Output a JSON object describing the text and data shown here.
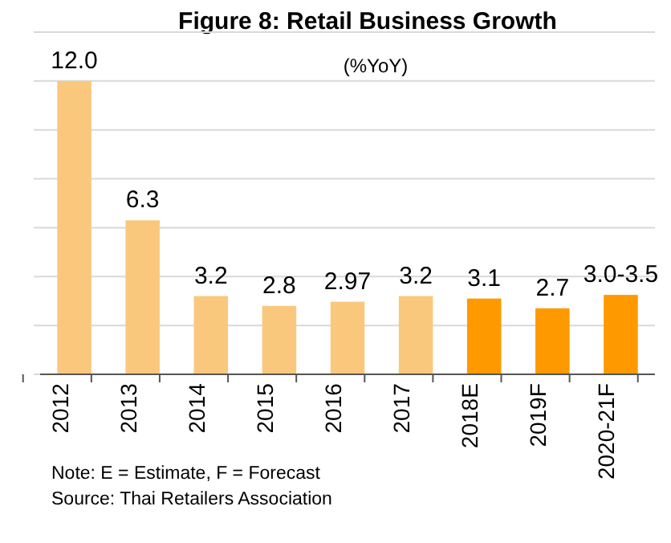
{
  "chart_data": {
    "type": "bar",
    "title": "Figure 8: Retail Business Growth",
    "subtitle": "(%YoY)",
    "categories": [
      "2012",
      "2013",
      "2014",
      "2015",
      "2016",
      "2017",
      "2018E",
      "2019F",
      "2020-21F"
    ],
    "values": [
      12.0,
      6.3,
      3.2,
      2.8,
      2.97,
      3.2,
      3.1,
      2.7,
      3.25
    ],
    "value_labels": [
      "12.0",
      "6.3",
      "3.2",
      "2.8",
      "2.97",
      "3.2",
      "3.1",
      "2.7",
      "3.0-3.5"
    ],
    "colors": [
      "#fac87d",
      "#fac87d",
      "#fac87d",
      "#fac87d",
      "#fac87d",
      "#fac87d",
      "#ff9900",
      "#ff9900",
      "#ff9900"
    ],
    "ylim": [
      0,
      14
    ],
    "yticks": [
      {
        "value": 0,
        "label": null
      },
      {
        "value": 2,
        "label": null
      },
      {
        "value": 4,
        "label": null
      },
      {
        "value": 6,
        "label": null
      },
      {
        "value": 8,
        "label": null
      },
      {
        "value": 10,
        "label": null
      },
      {
        "value": 12,
        "label": null
      },
      {
        "value": 14,
        "label": null
      }
    ],
    "tick_labels": "x",
    "grid": "y",
    "annotations": [
      "Note: E = Estimate, F = Forecast",
      "Source: Thai Retailers Association"
    ]
  }
}
